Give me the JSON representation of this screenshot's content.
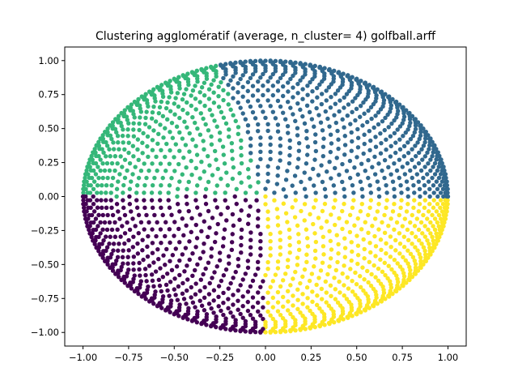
{
  "chart_data": {
    "type": "scatter",
    "title": "Clustering agglomératif (average, n_cluster= 4) golfball.arff",
    "xlabel": "",
    "ylabel": "",
    "xlim": [
      -1.1,
      1.1
    ],
    "ylim": [
      -1.1,
      1.1
    ],
    "xticks": [
      -1.0,
      -0.75,
      -0.5,
      -0.25,
      0.0,
      0.25,
      0.5,
      0.75,
      1.0
    ],
    "xtick_labels": [
      "−1.00",
      "−0.75",
      "−0.50",
      "−0.25",
      "0.00",
      "0.25",
      "0.50",
      "0.75",
      "1.00"
    ],
    "yticks": [
      1.0,
      0.75,
      0.5,
      0.25,
      0.0,
      -0.25,
      -0.5,
      -0.75,
      -1.0
    ],
    "ytick_labels": [
      "1.00",
      "0.75",
      "0.50",
      "0.25",
      "0.00",
      "−0.25",
      "−0.50",
      "−0.75",
      "−1.00"
    ],
    "grid": false,
    "legend": "none",
    "clusters": [
      {
        "label": 0,
        "color": "#440154",
        "angle_start": 180,
        "angle_end": 270
      },
      {
        "label": 1,
        "color": "#31688e",
        "angle_start": 0,
        "angle_end": 105
      },
      {
        "label": 2,
        "color": "#35b779",
        "angle_start": 105,
        "angle_end": 180
      },
      {
        "label": 3,
        "color": "#fde725",
        "angle_start": 270,
        "angle_end": 360
      }
    ],
    "point_radius_data_units": 0.012,
    "shape": "points on concentric rings of a unit sphere projected onto the x-y plane (golf ball surface)"
  }
}
